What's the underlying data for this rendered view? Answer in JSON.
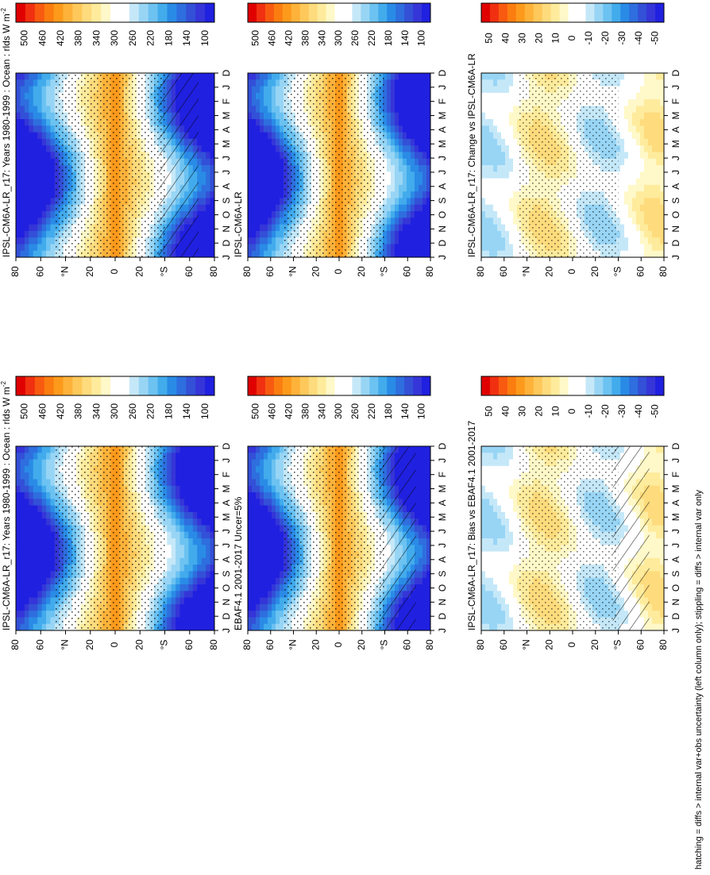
{
  "footnote": "hatching = diffs > internal var+obs uncertainty (left column only); stippling = diffs > internal var only",
  "chart_data": [
    {
      "type": "heatmap",
      "title": "IPSL-CM6A-LR_r17: Years 1980-1999 : Ocean : rlds W m",
      "units_superscript": "-2",
      "x": [
        "D",
        "J",
        "F",
        "M",
        "A",
        "M",
        "J",
        "J",
        "A",
        "S",
        "O",
        "N",
        "D",
        "J"
      ],
      "y_ticks": [
        "80",
        "60",
        "N",
        "20",
        "0",
        "20",
        "S",
        "60",
        "80"
      ],
      "y_degree_marks": [
        2,
        6
      ],
      "colorbar_labels": [
        "500",
        "460",
        "420",
        "380",
        "340",
        "300",
        "260",
        "220",
        "180",
        "140",
        "100"
      ],
      "zlim": [
        100,
        500
      ],
      "stippling": true,
      "hatching": true
    },
    {
      "type": "heatmap",
      "title": "IPSL-CM6A-LR_r17: Years 1980-1999 : Ocean : rlds W m",
      "units_superscript": "-2",
      "x": [
        "D",
        "J",
        "F",
        "M",
        "A",
        "M",
        "J",
        "J",
        "A",
        "S",
        "O",
        "N",
        "D",
        "J"
      ],
      "y_ticks": [
        "80",
        "60",
        "N",
        "20",
        "0",
        "20",
        "S",
        "60",
        "80"
      ],
      "y_degree_marks": [
        2,
        6
      ],
      "colorbar_labels": [
        "500",
        "460",
        "420",
        "380",
        "340",
        "300",
        "260",
        "220",
        "180",
        "140",
        "100"
      ],
      "zlim": [
        100,
        500
      ],
      "stippling": true,
      "hatching": false
    },
    {
      "type": "heatmap",
      "title": "EBAF4.1 2001-2017 Uncer=5%",
      "units_superscript": "",
      "x": [
        "D",
        "J",
        "F",
        "M",
        "A",
        "M",
        "J",
        "J",
        "A",
        "S",
        "O",
        "N",
        "D",
        "J"
      ],
      "y_ticks": [
        "80",
        "60",
        "N",
        "20",
        "0",
        "20",
        "S",
        "60",
        "80"
      ],
      "y_degree_marks": [
        2,
        6
      ],
      "colorbar_labels": [
        "500",
        "460",
        "420",
        "380",
        "340",
        "300",
        "260",
        "220",
        "180",
        "140",
        "100"
      ],
      "zlim": [
        100,
        500
      ],
      "stippling": true,
      "hatching": true
    },
    {
      "type": "heatmap",
      "title": "IPSL-CM6A-LR",
      "units_superscript": "",
      "x": [
        "D",
        "J",
        "F",
        "M",
        "A",
        "M",
        "J",
        "J",
        "A",
        "S",
        "O",
        "N",
        "D",
        "J"
      ],
      "y_ticks": [
        "80",
        "60",
        "N",
        "20",
        "0",
        "20",
        "S",
        "60",
        "80"
      ],
      "y_degree_marks": [
        2,
        6
      ],
      "colorbar_labels": [
        "500",
        "460",
        "420",
        "380",
        "340",
        "300",
        "260",
        "220",
        "180",
        "140",
        "100"
      ],
      "zlim": [
        100,
        500
      ],
      "stippling": true,
      "hatching": false
    },
    {
      "type": "heatmap",
      "title": "IPSL-CM6A-LR_r17: Bias vs EBAF4.1 2001-2017",
      "units_superscript": "",
      "x": [
        "D",
        "J",
        "F",
        "M",
        "A",
        "M",
        "J",
        "J",
        "A",
        "S",
        "O",
        "N",
        "D",
        "J"
      ],
      "y_ticks": [
        "80",
        "60",
        "N",
        "20",
        "0",
        "20",
        "S",
        "60",
        "80"
      ],
      "y_degree_marks": [
        2,
        6
      ],
      "colorbar_labels": [
        "50",
        "40",
        "30",
        "20",
        "10",
        "0",
        "-10",
        "-20",
        "-30",
        "-40",
        "-50"
      ],
      "zlim": [
        -50,
        50
      ],
      "stippling": true,
      "hatching": true
    },
    {
      "type": "heatmap",
      "title": "IPSL-CM6A-LR_r17: Change vs IPSL-CM6A-LR",
      "units_superscript": "",
      "x": [
        "D",
        "J",
        "F",
        "M",
        "A",
        "M",
        "J",
        "J",
        "A",
        "S",
        "O",
        "N",
        "D",
        "J"
      ],
      "y_ticks": [
        "80",
        "60",
        "N",
        "20",
        "0",
        "20",
        "S",
        "60",
        "80"
      ],
      "y_degree_marks": [
        2,
        6
      ],
      "colorbar_labels": [
        "50",
        "40",
        "30",
        "20",
        "10",
        "0",
        "-10",
        "-20",
        "-30",
        "-40",
        "-50"
      ],
      "zlim": [
        -50,
        50
      ],
      "stippling": true,
      "hatching": false
    }
  ],
  "palette": {
    "absolute": [
      "#e00000",
      "#f03010",
      "#f85a10",
      "#fb7d10",
      "#fd9a1c",
      "#feb23a",
      "#fec85a",
      "#fedb7c",
      "#feeb9c",
      "#fff8c8",
      "#ffffff",
      "#ffffff",
      "#c5e8f8",
      "#98d5f5",
      "#6cc2f1",
      "#42abec",
      "#2a8be6",
      "#2e6ede",
      "#3350d7",
      "#3535d8",
      "#2020e0"
    ],
    "diff": [
      "#e00000",
      "#f03010",
      "#f85a10",
      "#fb7d10",
      "#fd9a1c",
      "#feb23a",
      "#fec85a",
      "#fedb7c",
      "#feeb9c",
      "#fff8c8",
      "#ffffff",
      "#ffffff",
      "#c5e8f8",
      "#98d5f5",
      "#6cc2f1",
      "#42abec",
      "#2a8be6",
      "#2e6ede",
      "#3350d7",
      "#3535d8",
      "#2020e0"
    ]
  }
}
